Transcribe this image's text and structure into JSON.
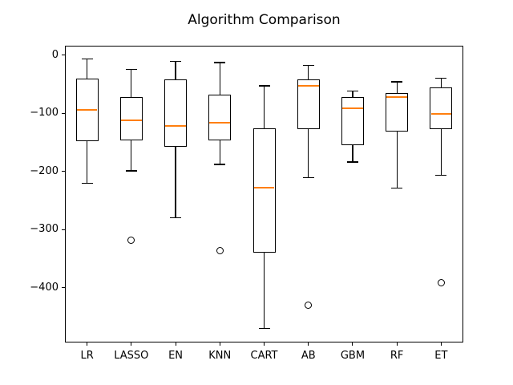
{
  "title": "Algorithm Comparison",
  "chart_data": {
    "type": "boxplot",
    "title": "Algorithm Comparison",
    "xlabel": "",
    "ylabel": "",
    "categories": [
      "LR",
      "LASSO",
      "EN",
      "KNN",
      "CART",
      "AB",
      "GBM",
      "RF",
      "ET"
    ],
    "series": [
      {
        "name": "LR",
        "whisker_low": -220,
        "q1": -148,
        "median": -94,
        "q3": -40,
        "whisker_high": -7,
        "outliers": []
      },
      {
        "name": "LASSO",
        "whisker_low": -199,
        "q1": -146,
        "median": -112,
        "q3": -72,
        "whisker_high": -25,
        "outliers": [
          -318
        ]
      },
      {
        "name": "EN",
        "whisker_low": -280,
        "q1": -157,
        "median": -122,
        "q3": -42,
        "whisker_high": -11,
        "outliers": []
      },
      {
        "name": "KNN",
        "whisker_low": -188,
        "q1": -146,
        "median": -116,
        "q3": -68,
        "whisker_high": -13,
        "outliers": [
          -336
        ]
      },
      {
        "name": "CART",
        "whisker_low": -470,
        "q1": -339,
        "median": -228,
        "q3": -126,
        "whisker_high": -53,
        "outliers": []
      },
      {
        "name": "AB",
        "whisker_low": -211,
        "q1": -127,
        "median": -53,
        "q3": -42,
        "whisker_high": -18,
        "outliers": [
          -430
        ]
      },
      {
        "name": "GBM",
        "whisker_low": -184,
        "q1": -155,
        "median": -91,
        "q3": -72,
        "whisker_high": -62,
        "outliers": []
      },
      {
        "name": "RF",
        "whisker_low": -229,
        "q1": -131,
        "median": -72,
        "q3": -65,
        "whisker_high": -46,
        "outliers": []
      },
      {
        "name": "ET",
        "whisker_low": -207,
        "q1": -127,
        "median": -101,
        "q3": -55,
        "whisker_high": -40,
        "outliers": [
          -392
        ]
      }
    ],
    "ytick_labels": [
      "0",
      "−100",
      "−200",
      "−300",
      "−400"
    ],
    "ytick_values": [
      0,
      -100,
      -200,
      -300,
      -400
    ],
    "ylim": [
      -494,
      16
    ],
    "xlim": [
      0.5,
      9.5
    ],
    "grid": false,
    "colors": {
      "box_line": "#000000",
      "median": "#ff7f0e",
      "text": "#000000",
      "background": "#ffffff"
    }
  }
}
